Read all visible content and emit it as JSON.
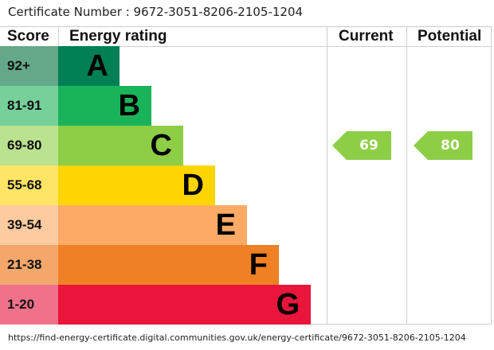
{
  "certificate": "Certificate Number : 9672-3051-8206-2105-1204",
  "headers": {
    "score": "Score",
    "rating": "Energy rating",
    "current": "Current",
    "potential": "Potential"
  },
  "chart_data": {
    "type": "bar",
    "bands": [
      {
        "score": "92+",
        "letter": "A",
        "color": "#008054",
        "score_color": "#65a889"
      },
      {
        "score": "81-91",
        "letter": "B",
        "color": "#19b459",
        "score_color": "#76d09a"
      },
      {
        "score": "69-80",
        "letter": "C",
        "color": "#8dce46",
        "score_color": "#bae28f"
      },
      {
        "score": "55-68",
        "letter": "D",
        "color": "#ffd500",
        "score_color": "#ffe566"
      },
      {
        "score": "39-54",
        "letter": "E",
        "color": "#fcaa65",
        "score_color": "#fdcba0"
      },
      {
        "score": "21-38",
        "letter": "F",
        "color": "#ef8023",
        "score_color": "#f4a76b"
      },
      {
        "score": "1-20",
        "letter": "G",
        "color": "#e9153b",
        "score_color": "#f0728a"
      }
    ],
    "current": {
      "value": "69",
      "band": "C",
      "color": "#8dce46"
    },
    "potential": {
      "value": "80",
      "band": "C",
      "color": "#8dce46"
    }
  },
  "url": "https://find-energy-certificate.digital.communities.gov.uk/energy-certificate/9672-3051-8206-2105-1204"
}
